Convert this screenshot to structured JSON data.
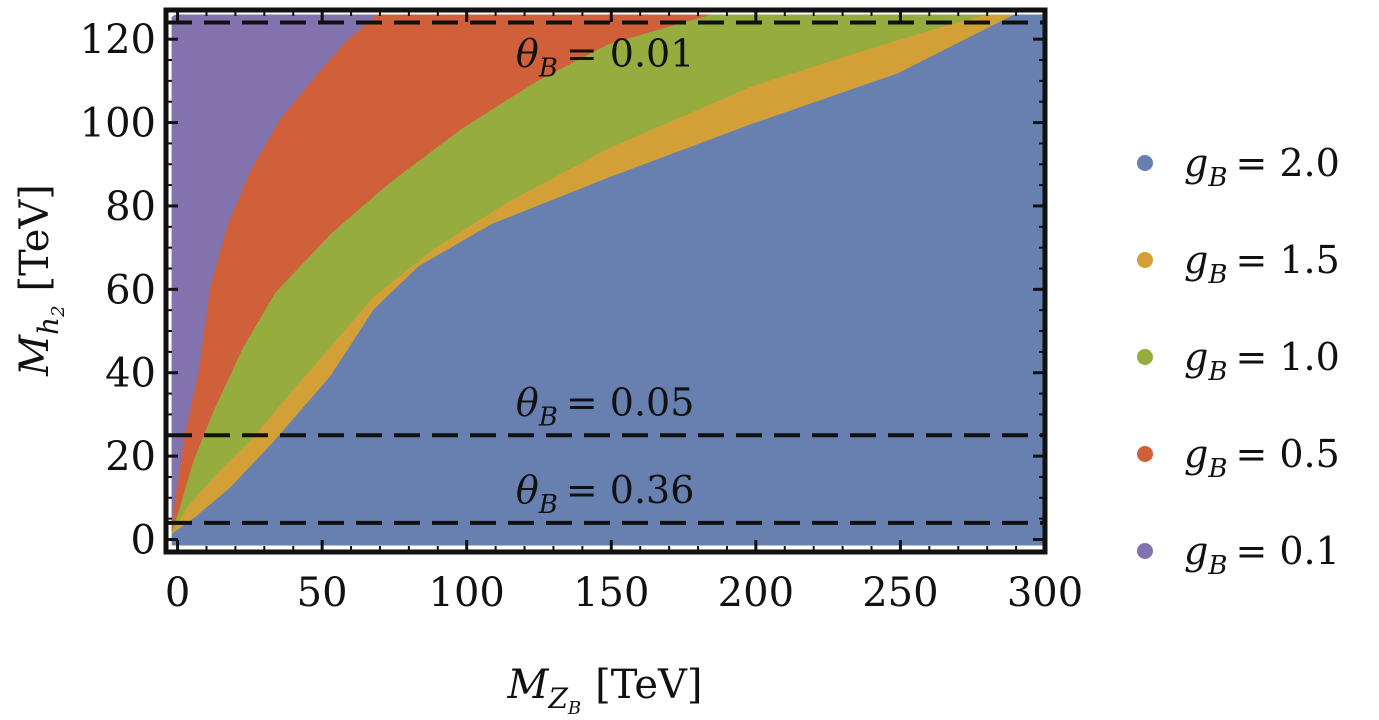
{
  "chart_data": {
    "type": "area",
    "title": "",
    "xlabel": {
      "var": "M",
      "sub": "Z",
      "subsub": "B",
      "unit": "[TeV]"
    },
    "ylabel": {
      "var": "M",
      "sub": "h",
      "subsub": "2",
      "unit": "[TeV]"
    },
    "xlim": [
      -4,
      300
    ],
    "ylim": [
      -3,
      127
    ],
    "x_ticks": [
      0,
      50,
      100,
      150,
      200,
      250,
      300
    ],
    "y_ticks": [
      0,
      20,
      40,
      60,
      80,
      100,
      120
    ],
    "x_tick_labels": [
      "0",
      "50",
      "100",
      "150",
      "200",
      "250",
      "300"
    ],
    "y_tick_labels": [
      "0",
      "20",
      "40",
      "60",
      "80",
      "100",
      "120"
    ],
    "region_top": 124,
    "legend_position": "right",
    "series": [
      {
        "name": "g_B = 0.1",
        "label_var": "g",
        "label_sub": "B",
        "label_value": "= 0.1",
        "color": "#8272ad",
        "boundary": [
          [
            0,
            124
          ],
          [
            0,
            0
          ]
        ]
      },
      {
        "name": "g_B = 0.5",
        "label_var": "g",
        "label_sub": "B",
        "label_value": "= 0.5",
        "color": "#d0603a",
        "boundary": [
          [
            0,
            0
          ],
          [
            2,
            10
          ],
          [
            5,
            24
          ],
          [
            10,
            40
          ],
          [
            14,
            60
          ],
          [
            20,
            75
          ],
          [
            28,
            88
          ],
          [
            38,
            100
          ],
          [
            50,
            110
          ],
          [
            60,
            118
          ],
          [
            70,
            124
          ]
        ]
      },
      {
        "name": "g_B = 1.0",
        "label_var": "g",
        "label_sub": "B",
        "label_value": "= 1.0",
        "color": "#96ac3e",
        "boundary": [
          [
            0,
            0
          ],
          [
            3,
            6
          ],
          [
            8,
            18
          ],
          [
            15,
            30
          ],
          [
            25,
            45
          ],
          [
            36,
            58
          ],
          [
            55,
            72
          ],
          [
            75,
            84
          ],
          [
            100,
            97
          ],
          [
            125,
            108
          ],
          [
            150,
            117
          ],
          [
            185,
            124
          ]
        ]
      },
      {
        "name": "g_B = 1.5",
        "label_var": "g",
        "label_sub": "B",
        "label_value": "= 1.5",
        "color": "#d2a036",
        "boundary": [
          [
            0,
            0
          ],
          [
            6,
            7
          ],
          [
            15,
            14
          ],
          [
            28,
            23
          ],
          [
            40,
            33
          ],
          [
            55,
            45
          ],
          [
            70,
            57
          ],
          [
            90,
            68
          ],
          [
            115,
            79
          ],
          [
            150,
            92
          ],
          [
            200,
            107
          ],
          [
            250,
            118
          ],
          [
            280,
            124
          ]
        ]
      },
      {
        "name": "g_B = 2.0",
        "label_var": "g",
        "label_sub": "B",
        "label_value": "= 2.0",
        "color": "#6880b0",
        "boundary": [
          [
            0,
            0
          ],
          [
            8,
            4
          ],
          [
            20,
            11
          ],
          [
            35,
            22
          ],
          [
            55,
            38
          ],
          [
            70,
            54
          ],
          [
            85,
            64
          ],
          [
            110,
            74
          ],
          [
            150,
            85
          ],
          [
            200,
            98
          ],
          [
            250,
            110
          ],
          [
            290,
            124
          ],
          [
            300,
            124
          ]
        ]
      }
    ],
    "legend_order": [
      "g_B = 2.0",
      "g_B = 1.5",
      "g_B = 1.0",
      "g_B = 0.5",
      "g_B = 0.1"
    ],
    "reference_lines": [
      {
        "y": 124,
        "label_var": "θ",
        "label_sub": "B",
        "label_value": "= 0.01",
        "label_x": 117
      },
      {
        "y": 25,
        "label_var": "θ",
        "label_sub": "B",
        "label_value": "= 0.05",
        "label_x": 117
      },
      {
        "y": 4,
        "label_var": "θ",
        "label_sub": "B",
        "label_value": "= 0.36",
        "label_x": 117
      }
    ]
  }
}
